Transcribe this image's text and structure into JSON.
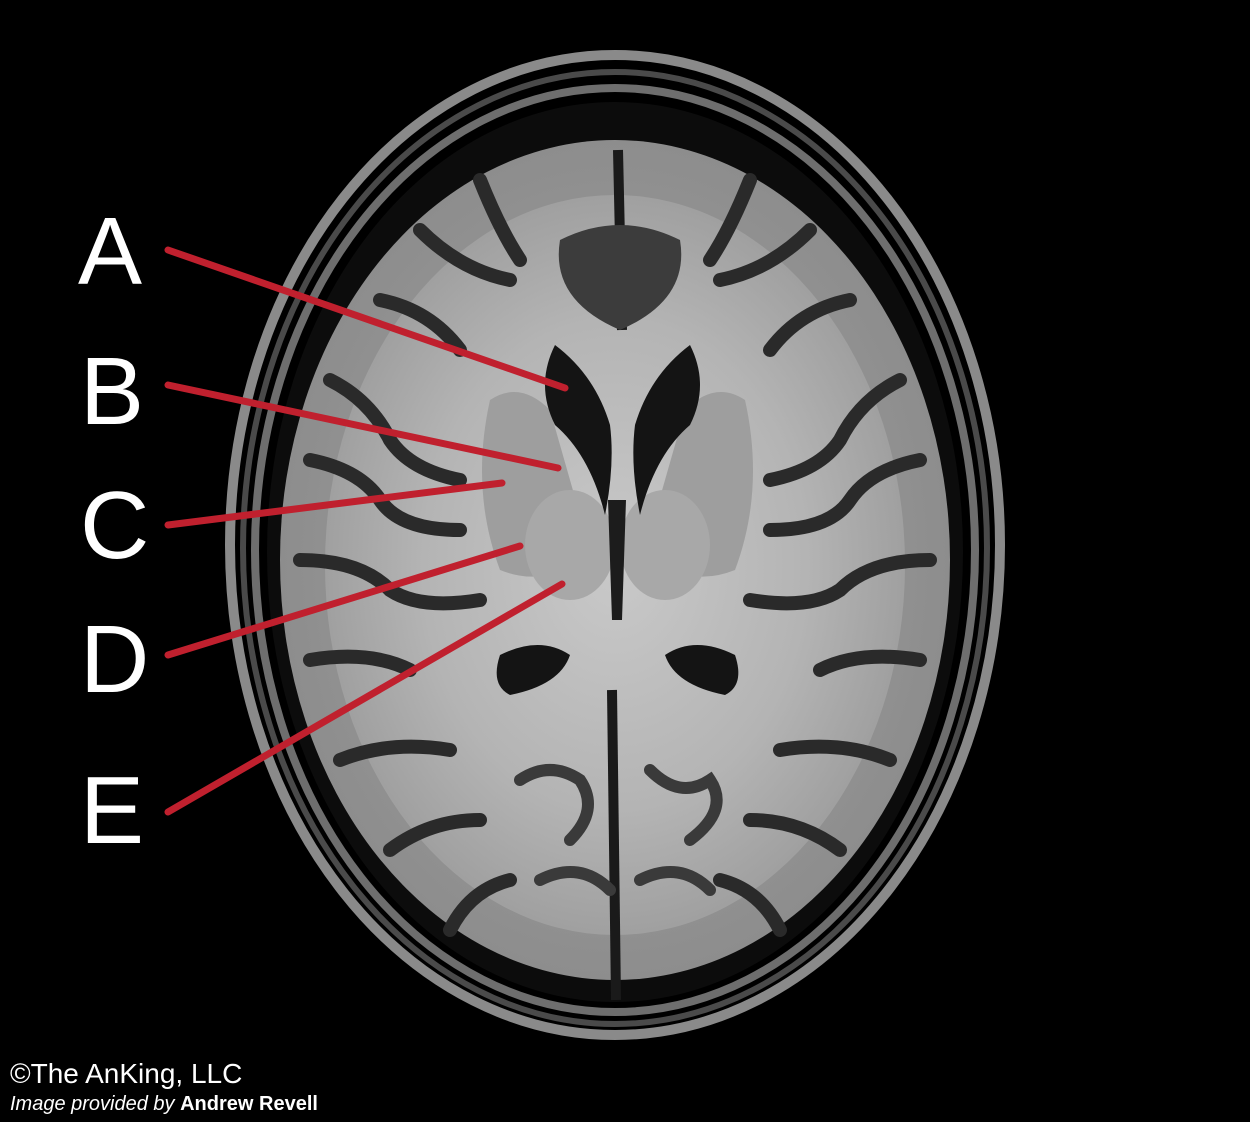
{
  "labels": {
    "a": "A",
    "b": "B",
    "c": "C",
    "d": "D",
    "e": "E"
  },
  "credits": {
    "copyright": "©The AnKing, LLC",
    "provided_prefix": "Image provided by",
    "provided_author": "Andrew Revell"
  },
  "colors": {
    "background": "#000000",
    "leader_line": "#c0202e",
    "label_text": "#ffffff"
  }
}
